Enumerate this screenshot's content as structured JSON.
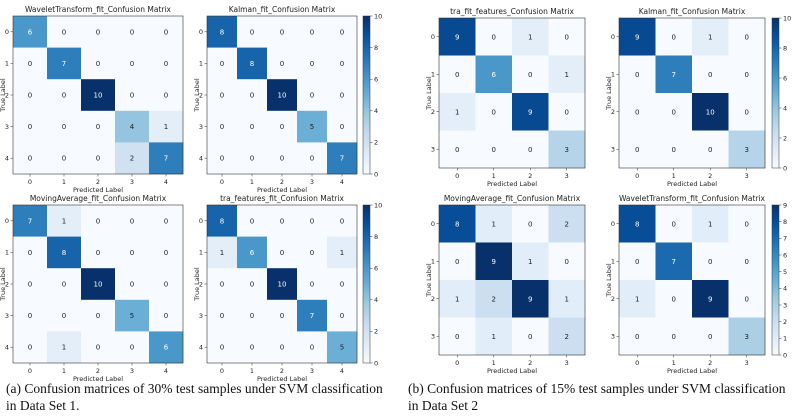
{
  "captions": {
    "a": "(a) Confusion matrices of 30% test samples under SVM classification in Data Set 1.",
    "b": "(b) Confusion matrices of 15% test samples under SVM classification in Data Set 2"
  },
  "chart_data": [
    {
      "type": "heatmap",
      "title": "WaveletTransform_fit_Confusion Matrix",
      "xlabel": "Predicted Label",
      "ylabel": "True Label",
      "categories": [
        "0",
        "1",
        "2",
        "3",
        "4"
      ],
      "vmax": 10,
      "values": [
        [
          6,
          0,
          0,
          0,
          0
        ],
        [
          0,
          7,
          0,
          0,
          0
        ],
        [
          0,
          0,
          10,
          0,
          0
        ],
        [
          0,
          0,
          0,
          4,
          1
        ],
        [
          0,
          0,
          0,
          2,
          7
        ]
      ]
    },
    {
      "type": "heatmap",
      "title": "Kalman_fit_Confusion Matrix",
      "xlabel": "Predicted Label",
      "ylabel": "True Label",
      "categories": [
        "0",
        "1",
        "2",
        "3",
        "4"
      ],
      "vmax": 10,
      "values": [
        [
          8,
          0,
          0,
          0,
          0
        ],
        [
          0,
          8,
          0,
          0,
          0
        ],
        [
          0,
          0,
          10,
          0,
          0
        ],
        [
          0,
          0,
          0,
          5,
          0
        ],
        [
          0,
          0,
          0,
          0,
          7
        ]
      ]
    },
    {
      "type": "heatmap",
      "title": "MovingAverage_fit_Confusion Matrix",
      "xlabel": "Predicted Label",
      "ylabel": "True Label",
      "categories": [
        "0",
        "1",
        "2",
        "3",
        "4"
      ],
      "vmax": 10,
      "values": [
        [
          7,
          1,
          0,
          0,
          0
        ],
        [
          0,
          8,
          0,
          0,
          0
        ],
        [
          0,
          0,
          10,
          0,
          0
        ],
        [
          0,
          0,
          0,
          5,
          0
        ],
        [
          0,
          1,
          0,
          0,
          6
        ]
      ]
    },
    {
      "type": "heatmap",
      "title": "tra_features_fit_Confusion Matrix",
      "xlabel": "Predicted Label",
      "ylabel": "True Label",
      "categories": [
        "0",
        "1",
        "2",
        "3",
        "4"
      ],
      "vmax": 10,
      "values": [
        [
          8,
          0,
          0,
          0,
          0
        ],
        [
          1,
          6,
          0,
          0,
          1
        ],
        [
          0,
          0,
          10,
          0,
          0
        ],
        [
          0,
          0,
          0,
          7,
          0
        ],
        [
          0,
          0,
          0,
          0,
          5
        ]
      ]
    },
    {
      "type": "heatmap",
      "title": "tra_fit_features_Confusion Matrix",
      "xlabel": "Predicted Label",
      "ylabel": "True Label",
      "categories": [
        "0",
        "1",
        "2",
        "3"
      ],
      "vmax": 10,
      "values": [
        [
          9,
          0,
          1,
          0
        ],
        [
          0,
          6,
          0,
          1
        ],
        [
          1,
          0,
          9,
          0
        ],
        [
          0,
          0,
          0,
          3
        ]
      ]
    },
    {
      "type": "heatmap",
      "title": "Kalman_fit_Confusion Matrix",
      "xlabel": "Predicted Label",
      "ylabel": "True Label",
      "categories": [
        "0",
        "1",
        "2",
        "3"
      ],
      "vmax": 10,
      "values": [
        [
          9,
          0,
          1,
          0
        ],
        [
          0,
          7,
          0,
          0
        ],
        [
          0,
          0,
          10,
          0
        ],
        [
          0,
          0,
          0,
          3
        ]
      ]
    },
    {
      "type": "heatmap",
      "title": "MovingAverage_fit_Confusion Matrix",
      "xlabel": "Predicted Label",
      "ylabel": "True Label",
      "categories": [
        "0",
        "1",
        "2",
        "3"
      ],
      "vmax": 9,
      "values": [
        [
          8,
          1,
          0,
          2
        ],
        [
          0,
          9,
          1,
          0
        ],
        [
          1,
          2,
          9,
          1
        ],
        [
          0,
          1,
          0,
          2
        ]
      ]
    },
    {
      "type": "heatmap",
      "title": "WaveletTransform_fit_Confusion Matrix",
      "xlabel": "Predicted Label",
      "ylabel": "True Label",
      "categories": [
        "0",
        "1",
        "2",
        "3"
      ],
      "vmax": 9,
      "values": [
        [
          8,
          0,
          1,
          0
        ],
        [
          0,
          7,
          0,
          0
        ],
        [
          1,
          0,
          9,
          0
        ],
        [
          0,
          0,
          0,
          3
        ]
      ]
    }
  ],
  "colorbars": [
    {
      "ticks": [
        "0",
        "2",
        "4",
        "6",
        "8",
        "10"
      ],
      "max": 10
    },
    {
      "ticks": [
        "0",
        "2",
        "4",
        "6",
        "8",
        "10"
      ],
      "max": 10
    },
    {
      "ticks": [
        "0",
        "2",
        "4",
        "6",
        "8",
        "10"
      ],
      "max": 10
    },
    {
      "ticks": [
        "0",
        "1",
        "2",
        "3",
        "4",
        "5",
        "6",
        "7",
        "8",
        "9"
      ],
      "max": 9
    }
  ]
}
